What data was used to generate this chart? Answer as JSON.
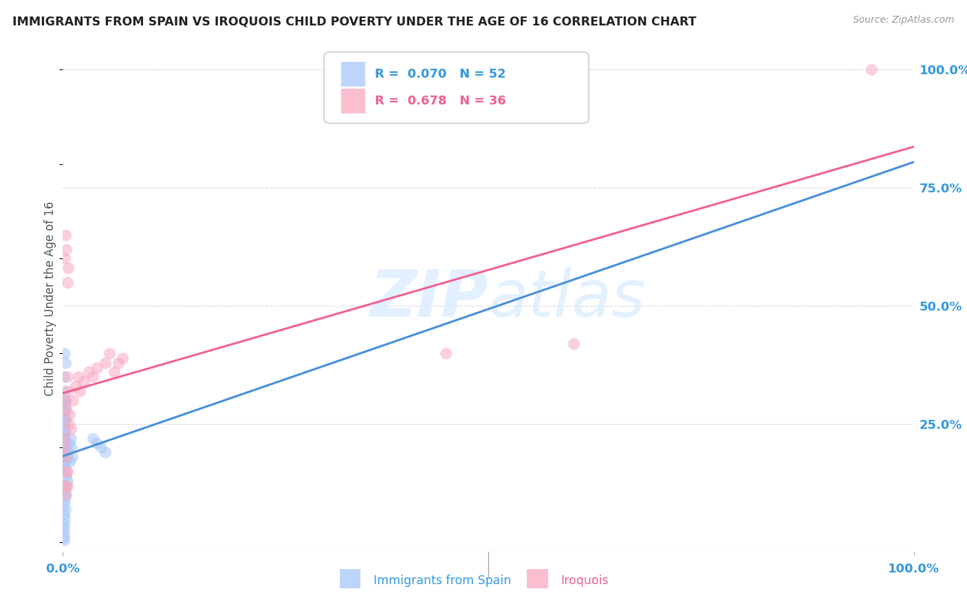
{
  "title": "IMMIGRANTS FROM SPAIN VS IROQUOIS CHILD POVERTY UNDER THE AGE OF 16 CORRELATION CHART",
  "source": "Source: ZipAtlas.com",
  "ylabel": "Child Poverty Under the Age of 16",
  "legend_label_1": "Immigrants from Spain",
  "legend_label_2": "Iroquois",
  "r1": 0.07,
  "n1": 52,
  "r2": 0.678,
  "n2": 36,
  "color_blue": "#a8c8fa",
  "color_pink": "#f9a8c0",
  "line_blue_solid": "#4a90d9",
  "line_blue_dashed": "#90c0e8",
  "line_pink": "#f06090",
  "background": "#ffffff",
  "grid_color": "#d8d8d8",
  "watermark_color": "#ddeeff",
  "blue_x": [
    0.002,
    0.003,
    0.004,
    0.005,
    0.006,
    0.007,
    0.008,
    0.009,
    0.01,
    0.011,
    0.002,
    0.003,
    0.003,
    0.004,
    0.005,
    0.002,
    0.003,
    0.004,
    0.001,
    0.002,
    0.003,
    0.001,
    0.002,
    0.003,
    0.001,
    0.002,
    0.003,
    0.001,
    0.002,
    0.001,
    0.001,
    0.002,
    0.001,
    0.002,
    0.001,
    0.002,
    0.001,
    0.001,
    0.002,
    0.001,
    0.001,
    0.001,
    0.001,
    0.001,
    0.002,
    0.003,
    0.035,
    0.04,
    0.045,
    0.05,
    0.002,
    0.003
  ],
  "blue_y": [
    0.22,
    0.24,
    0.2,
    0.18,
    0.19,
    0.21,
    0.17,
    0.22,
    0.2,
    0.18,
    0.28,
    0.26,
    0.3,
    0.14,
    0.13,
    0.12,
    0.11,
    0.1,
    0.32,
    0.3,
    0.29,
    0.35,
    0.27,
    0.26,
    0.08,
    0.09,
    0.07,
    0.06,
    0.05,
    0.04,
    0.21,
    0.2,
    0.22,
    0.23,
    0.25,
    0.24,
    0.19,
    0.16,
    0.15,
    0.17,
    0.03,
    0.02,
    0.01,
    0.005,
    0.18,
    0.17,
    0.22,
    0.21,
    0.2,
    0.19,
    0.4,
    0.38
  ],
  "pink_x": [
    0.002,
    0.003,
    0.004,
    0.005,
    0.006,
    0.007,
    0.008,
    0.009,
    0.012,
    0.015,
    0.018,
    0.02,
    0.025,
    0.03,
    0.035,
    0.04,
    0.002,
    0.003,
    0.004,
    0.005,
    0.006,
    0.05,
    0.055,
    0.06,
    0.065,
    0.07,
    0.002,
    0.003,
    0.004,
    0.005,
    0.45,
    0.6,
    0.003,
    0.004,
    0.005,
    0.95
  ],
  "pink_y": [
    0.22,
    0.3,
    0.28,
    0.35,
    0.32,
    0.25,
    0.27,
    0.24,
    0.3,
    0.33,
    0.35,
    0.32,
    0.34,
    0.36,
    0.35,
    0.37,
    0.6,
    0.65,
    0.62,
    0.55,
    0.58,
    0.38,
    0.4,
    0.36,
    0.38,
    0.39,
    0.2,
    0.18,
    0.15,
    0.12,
    0.4,
    0.42,
    0.1,
    0.12,
    0.15,
    1.0
  ],
  "xlim": [
    0.0,
    1.0
  ],
  "ylim": [
    -0.02,
    1.05
  ],
  "ytick_positions": [
    0.25,
    0.5,
    0.75,
    1.0
  ],
  "ytick_labels": [
    "25.0%",
    "50.0%",
    "75.0%",
    "100.0%"
  ],
  "xtick_positions": [
    0.0,
    1.0
  ],
  "xtick_labels": [
    "0.0%",
    "100.0%"
  ]
}
